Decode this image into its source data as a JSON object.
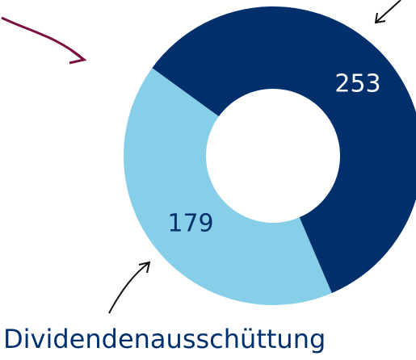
{
  "chart_data": {
    "type": "donut",
    "categories": [
      null,
      "Dividendenausschüttung"
    ],
    "values": [
      253,
      179
    ],
    "colors": [
      "#00306b",
      "#87cfe8"
    ],
    "label_colors": [
      "#ffffff",
      "#00306b"
    ]
  }
}
